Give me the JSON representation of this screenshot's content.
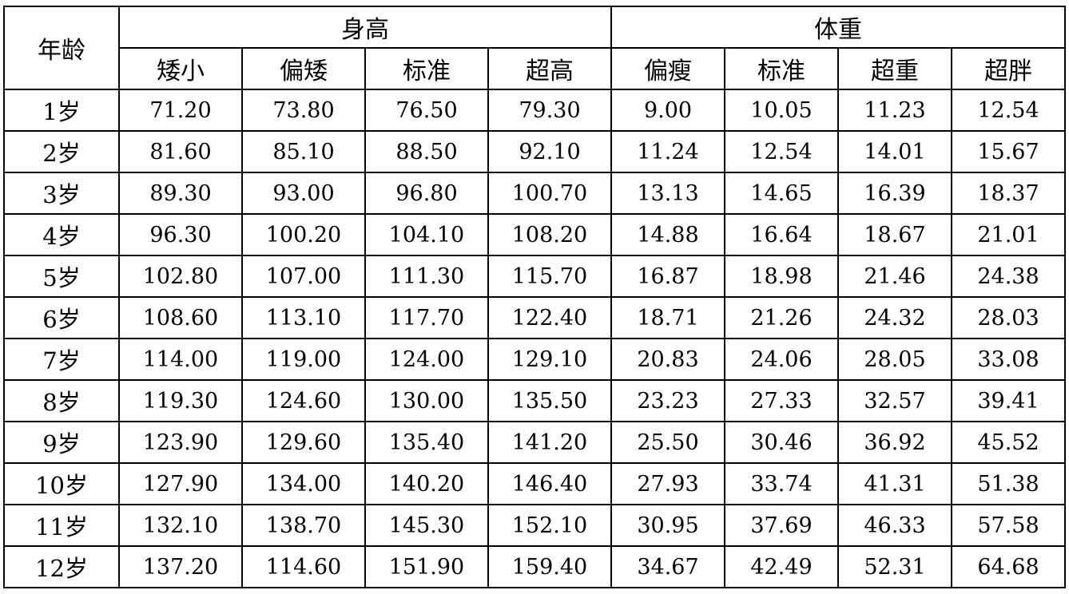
{
  "chart_data": {
    "type": "table",
    "title": "",
    "group_headers": [
      "身高",
      "体重"
    ],
    "row_header_label": "年龄",
    "columns": {
      "height": [
        "矮小",
        "偏矮",
        "标准",
        "超高"
      ],
      "weight": [
        "偏瘦",
        "标准",
        "超重",
        "超胖"
      ]
    },
    "rows": [
      {
        "age": "1岁",
        "height": [
          "71.20",
          "73.80",
          "76.50",
          "79.30"
        ],
        "weight": [
          "9.00",
          "10.05",
          "11.23",
          "12.54"
        ]
      },
      {
        "age": "2岁",
        "height": [
          "81.60",
          "85.10",
          "88.50",
          "92.10"
        ],
        "weight": [
          "11.24",
          "12.54",
          "14.01",
          "15.67"
        ]
      },
      {
        "age": "3岁",
        "height": [
          "89.30",
          "93.00",
          "96.80",
          "100.70"
        ],
        "weight": [
          "13.13",
          "14.65",
          "16.39",
          "18.37"
        ]
      },
      {
        "age": "4岁",
        "height": [
          "96.30",
          "100.20",
          "104.10",
          "108.20"
        ],
        "weight": [
          "14.88",
          "16.64",
          "18.67",
          "21.01"
        ]
      },
      {
        "age": "5岁",
        "height": [
          "102.80",
          "107.00",
          "111.30",
          "115.70"
        ],
        "weight": [
          "16.87",
          "18.98",
          "21.46",
          "24.38"
        ]
      },
      {
        "age": "6岁",
        "height": [
          "108.60",
          "113.10",
          "117.70",
          "122.40"
        ],
        "weight": [
          "18.71",
          "21.26",
          "24.32",
          "28.03"
        ]
      },
      {
        "age": "7岁",
        "height": [
          "114.00",
          "119.00",
          "124.00",
          "129.10"
        ],
        "weight": [
          "20.83",
          "24.06",
          "28.05",
          "33.08"
        ]
      },
      {
        "age": "8岁",
        "height": [
          "119.30",
          "124.60",
          "130.00",
          "135.50"
        ],
        "weight": [
          "23.23",
          "27.33",
          "32.57",
          "39.41"
        ]
      },
      {
        "age": "9岁",
        "height": [
          "123.90",
          "129.60",
          "135.40",
          "141.20"
        ],
        "weight": [
          "25.50",
          "30.46",
          "36.92",
          "45.52"
        ]
      },
      {
        "age": "10岁",
        "height": [
          "127.90",
          "134.00",
          "140.20",
          "146.40"
        ],
        "weight": [
          "27.93",
          "33.74",
          "41.31",
          "51.38"
        ]
      },
      {
        "age": "11岁",
        "height": [
          "132.10",
          "138.70",
          "145.30",
          "152.10"
        ],
        "weight": [
          "30.95",
          "37.69",
          "46.33",
          "57.58"
        ]
      },
      {
        "age": "12岁",
        "height": [
          "137.20",
          "114.60",
          "151.90",
          "159.40"
        ],
        "weight": [
          "34.67",
          "42.49",
          "52.31",
          "64.68"
        ]
      }
    ]
  }
}
